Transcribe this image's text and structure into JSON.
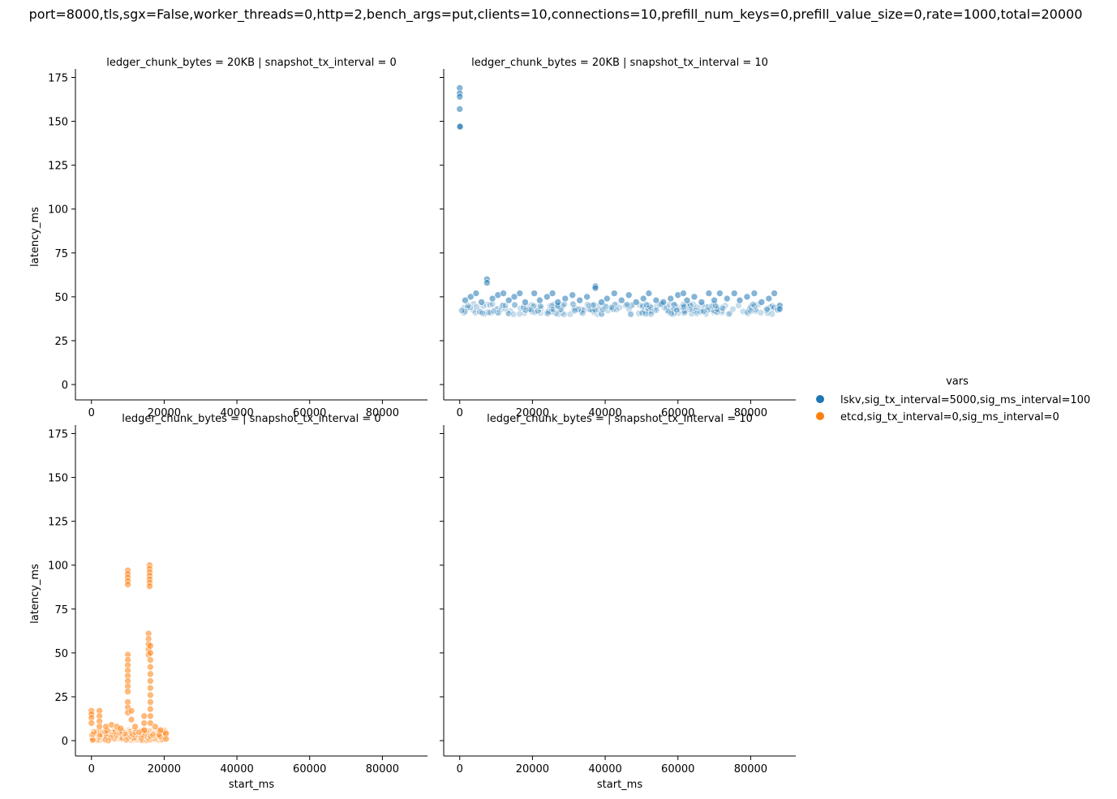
{
  "suptitle": "port=8000,tls,sgx=False,worker_threads=0,http=2,bench_args=put,clients=10,connections=10,prefill_num_keys=0,prefill_value_size=0,rate=1000,total=20000",
  "legend": {
    "title": "vars",
    "items": [
      {
        "label": "lskv,sig_tx_interval=5000,sig_ms_interval=100",
        "color": "#1f77b4"
      },
      {
        "label": "etcd,sig_tx_interval=0,sig_ms_interval=0",
        "color": "#ff7f0e"
      }
    ],
    "placement": "center-right"
  },
  "chart_data": [
    {
      "type": "scatter",
      "title": "ledger_chunk_bytes = 20KB | snapshot_tx_interval = 0",
      "xlabel": "",
      "ylabel": "latency_ms",
      "xlim": [
        -4400,
        92400
      ],
      "ylim": [
        -8.75,
        178
      ],
      "xticks": [
        0,
        20000,
        40000,
        60000,
        80000
      ],
      "yticks": [
        0,
        25,
        50,
        75,
        100,
        125,
        150,
        175
      ],
      "grid": false,
      "series": []
    },
    {
      "type": "scatter",
      "title": "ledger_chunk_bytes = 20KB | snapshot_tx_interval = 10",
      "xlabel": "",
      "ylabel": "",
      "xlim": [
        -4400,
        92400
      ],
      "ylim": [
        -8.75,
        178
      ],
      "xticks": [
        0,
        20000,
        40000,
        60000,
        80000
      ],
      "yticks": [
        0,
        25,
        50,
        75,
        100,
        125,
        150,
        175
      ],
      "grid": false,
      "series": [
        {
          "name": "lskv,sig_tx_interval=5000,sig_ms_interval=100",
          "color": "#1f77b4",
          "points": [
            [
              0,
              169
            ],
            [
              0,
              166
            ],
            [
              0,
              164
            ],
            [
              0,
              157
            ],
            [
              0,
              147
            ],
            [
              100,
              147
            ],
            [
              7500,
              60
            ],
            [
              7500,
              58
            ],
            [
              37300,
              56
            ],
            [
              37300,
              55
            ],
            [
              1500,
              48
            ],
            [
              3000,
              50
            ],
            [
              4500,
              52
            ],
            [
              6000,
              47
            ],
            [
              9000,
              49
            ],
            [
              10500,
              51
            ],
            [
              12000,
              52
            ],
            [
              13500,
              48
            ],
            [
              15000,
              50
            ],
            [
              16500,
              52
            ],
            [
              18000,
              47
            ],
            [
              20500,
              52
            ],
            [
              22000,
              48
            ],
            [
              24000,
              50
            ],
            [
              25500,
              52
            ],
            [
              27000,
              47
            ],
            [
              29000,
              49
            ],
            [
              31000,
              51
            ],
            [
              33000,
              48
            ],
            [
              35000,
              50
            ],
            [
              39000,
              47
            ],
            [
              40500,
              49
            ],
            [
              42500,
              52
            ],
            [
              44500,
              48
            ],
            [
              46500,
              51
            ],
            [
              48500,
              47
            ],
            [
              50500,
              49
            ],
            [
              52000,
              52
            ],
            [
              54000,
              48
            ],
            [
              56000,
              47
            ],
            [
              58000,
              49
            ],
            [
              60000,
              51
            ],
            [
              61500,
              52
            ],
            [
              62500,
              48
            ],
            [
              64500,
              50
            ],
            [
              66500,
              47
            ],
            [
              68500,
              52
            ],
            [
              70000,
              48
            ],
            [
              71500,
              52
            ],
            [
              73500,
              49
            ],
            [
              75500,
              52
            ],
            [
              77000,
              48
            ],
            [
              79000,
              50
            ],
            [
              81000,
              52
            ],
            [
              83000,
              47
            ],
            [
              85000,
              49
            ],
            [
              86500,
              52
            ],
            [
              88000,
              45
            ],
            [
              88000,
              43
            ]
          ],
          "band": {
            "x_range": [
              0,
              88000
            ],
            "y_range": [
              40,
              46
            ]
          }
        }
      ]
    },
    {
      "type": "scatter",
      "title": "ledger_chunk_bytes =  | snapshot_tx_interval = 0",
      "xlabel": "start_ms",
      "ylabel": "latency_ms",
      "xlim": [
        -4400,
        92400
      ],
      "ylim": [
        -8.75,
        178
      ],
      "xticks": [
        0,
        20000,
        40000,
        60000,
        80000
      ],
      "yticks": [
        0,
        25,
        50,
        75,
        100,
        125,
        150,
        175
      ],
      "grid": false,
      "series": [
        {
          "name": "etcd,sig_tx_interval=0,sig_ms_interval=0",
          "color": "#ff7f0e",
          "points": [
            [
              0,
              17
            ],
            [
              0,
              15
            ],
            [
              0,
              13
            ],
            [
              0,
              10
            ],
            [
              2200,
              17
            ],
            [
              2200,
              14
            ],
            [
              2200,
              11
            ],
            [
              2200,
              8
            ],
            [
              4000,
              8
            ],
            [
              5500,
              9
            ],
            [
              7000,
              8
            ],
            [
              8000,
              7
            ],
            [
              10000,
              97
            ],
            [
              10000,
              95
            ],
            [
              10000,
              93
            ],
            [
              10000,
              91
            ],
            [
              10000,
              89
            ],
            [
              10000,
              49
            ],
            [
              10000,
              46
            ],
            [
              10000,
              43
            ],
            [
              10000,
              40
            ],
            [
              10000,
              37
            ],
            [
              10000,
              34
            ],
            [
              10000,
              31
            ],
            [
              10000,
              28
            ],
            [
              10000,
              22
            ],
            [
              10000,
              19
            ],
            [
              10000,
              16
            ],
            [
              11000,
              17
            ],
            [
              11000,
              12
            ],
            [
              12000,
              8
            ],
            [
              14500,
              14
            ],
            [
              14500,
              10
            ],
            [
              14500,
              6
            ],
            [
              16000,
              100
            ],
            [
              16000,
              98
            ],
            [
              16000,
              96
            ],
            [
              16000,
              94
            ],
            [
              16000,
              92
            ],
            [
              16000,
              90
            ],
            [
              16000,
              88
            ],
            [
              15700,
              61
            ],
            [
              15700,
              58
            ],
            [
              15700,
              55
            ],
            [
              15700,
              52
            ],
            [
              15700,
              49
            ],
            [
              16200,
              54
            ],
            [
              16200,
              50
            ],
            [
              16200,
              46
            ],
            [
              16200,
              42
            ],
            [
              16200,
              38
            ],
            [
              16200,
              34
            ],
            [
              16200,
              30
            ],
            [
              16200,
              26
            ],
            [
              16200,
              22
            ],
            [
              16200,
              18
            ],
            [
              16200,
              14
            ],
            [
              16200,
              10
            ],
            [
              17500,
              8
            ],
            [
              19000,
              6
            ],
            [
              20500,
              4
            ],
            [
              20500,
              1
            ]
          ],
          "band": {
            "x_range": [
              0,
              20500
            ],
            "y_range": [
              0,
              6
            ]
          }
        }
      ]
    },
    {
      "type": "scatter",
      "title": "ledger_chunk_bytes =  | snapshot_tx_interval = 10",
      "xlabel": "start_ms",
      "ylabel": "",
      "xlim": [
        -4400,
        92400
      ],
      "ylim": [
        -8.75,
        178
      ],
      "xticks": [
        0,
        20000,
        40000,
        60000,
        80000
      ],
      "yticks": [
        0,
        25,
        50,
        75,
        100,
        125,
        150,
        175
      ],
      "grid": false,
      "series": []
    }
  ]
}
